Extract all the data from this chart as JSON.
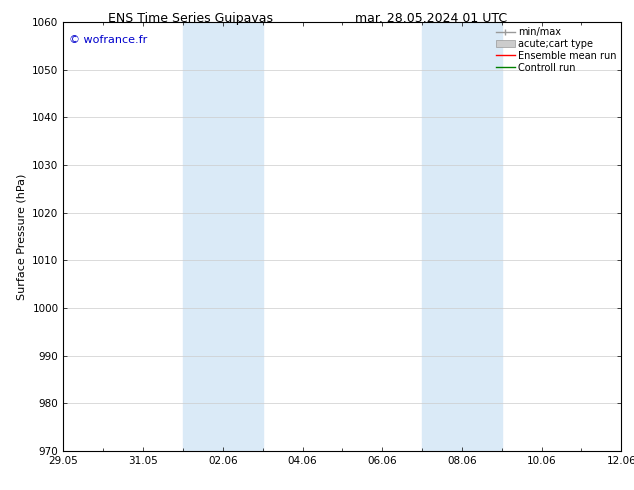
{
  "title_left": "ENS Time Series Guipavas",
  "title_right": "mar. 28.05.2024 01 UTC",
  "ylabel": "Surface Pressure (hPa)",
  "ylim": [
    970,
    1060
  ],
  "yticks": [
    970,
    980,
    990,
    1000,
    1010,
    1020,
    1030,
    1040,
    1050,
    1060
  ],
  "xtick_positions": [
    0,
    2,
    4,
    6,
    8,
    10,
    12,
    14
  ],
  "xtick_labels": [
    "29.05",
    "31.05",
    "02.06",
    "04.06",
    "06.06",
    "08.06",
    "10.06",
    "12.06"
  ],
  "xlim": [
    0,
    14
  ],
  "watermark": "© wofrance.fr",
  "watermark_color": "#0000cc",
  "bg_color": "#ffffff",
  "shaded_regions": [
    {
      "xstart": 3.0,
      "xend": 5.0
    },
    {
      "xstart": 9.0,
      "xend": 11.0
    }
  ],
  "shaded_color": "#daeaf7",
  "legend_labels": [
    "min/max",
    "acute;cart type",
    "Ensemble mean run",
    "Controll run"
  ],
  "legend_colors": [
    "#999999",
    "#cccccc",
    "#ff0000",
    "#008000"
  ],
  "grid_color": "#cccccc",
  "title_fontsize": 9,
  "tick_fontsize": 7.5,
  "label_fontsize": 8,
  "legend_fontsize": 7
}
